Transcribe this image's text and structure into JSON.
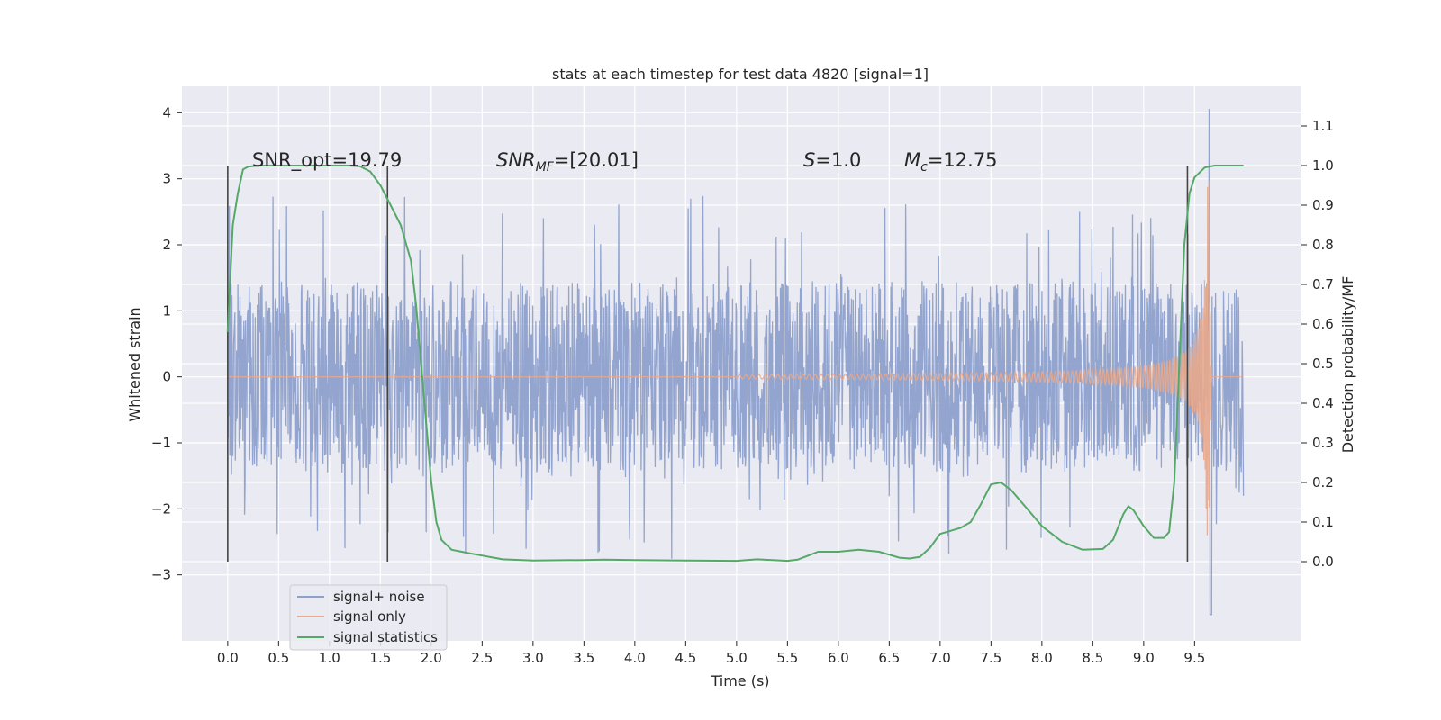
{
  "chart_data": {
    "type": "line",
    "title": "stats at each timestep for test data 4820 [signal=1]",
    "xlabel": "Time (s)",
    "ylabel": "Whitened strain",
    "y2label": "Detection probability/MF",
    "xlim": [
      -0.45,
      10.55
    ],
    "ylim": [
      -4.0,
      4.4
    ],
    "y2lim": [
      -0.2,
      1.2
    ],
    "xticks": [
      "0.0",
      "0.5",
      "1.0",
      "1.5",
      "2.0",
      "2.5",
      "3.0",
      "3.5",
      "4.0",
      "4.5",
      "5.0",
      "5.5",
      "6.0",
      "6.5",
      "7.0",
      "7.5",
      "8.0",
      "8.5",
      "9.0",
      "9.5"
    ],
    "yticks": [
      "4",
      "3",
      "2",
      "1",
      "0",
      "−1",
      "−2",
      "−3"
    ],
    "y2ticks": [
      "1.1",
      "1.0",
      "0.9",
      "0.8",
      "0.7",
      "0.6",
      "0.5",
      "0.4",
      "0.3",
      "0.2",
      "0.1",
      "0.0"
    ],
    "grid": true,
    "legend_position": "lower-left",
    "series": [
      {
        "name": "signal+ noise",
        "color": "#8ea1cc",
        "description": "whitened noisy strain, roughly ±1.4 envelope with spikes to about ±3, from 0.0 s to 10.0 s",
        "envelope": [
          -1.4,
          1.4
        ],
        "extremes": [
          -3.6,
          4.05
        ]
      },
      {
        "name": "signal only",
        "color": "#e8a88c",
        "description": "chirp waveform growing from 0 near 5.2 s to peak amplitude ~3 at merger ~9.65 s",
        "merger_time": 9.65,
        "peak_amplitude": 3.0
      },
      {
        "name": "signal statistics",
        "color": "#55a868",
        "axis": "right",
        "x": [
          0.0,
          0.05,
          0.1,
          0.15,
          0.2,
          0.3,
          0.5,
          0.8,
          1.0,
          1.2,
          1.3,
          1.4,
          1.5,
          1.6,
          1.7,
          1.8,
          1.85,
          1.9,
          1.95,
          2.0,
          2.05,
          2.1,
          2.2,
          2.4,
          2.7,
          3.0,
          3.5,
          3.7,
          4.0,
          4.5,
          5.0,
          5.2,
          5.5,
          5.6,
          5.7,
          5.8,
          6.0,
          6.2,
          6.4,
          6.6,
          6.7,
          6.8,
          6.9,
          7.0,
          7.2,
          7.3,
          7.4,
          7.5,
          7.6,
          7.7,
          7.8,
          8.0,
          8.2,
          8.4,
          8.6,
          8.7,
          8.8,
          8.85,
          8.9,
          9.0,
          9.1,
          9.2,
          9.25,
          9.3,
          9.35,
          9.4,
          9.45,
          9.5,
          9.6,
          9.7,
          9.8,
          9.98
        ],
        "values": [
          0.58,
          0.85,
          0.93,
          0.99,
          0.997,
          1.0,
          1.0,
          1.0,
          1.0,
          1.0,
          0.998,
          0.985,
          0.95,
          0.9,
          0.85,
          0.76,
          0.65,
          0.5,
          0.35,
          0.2,
          0.1,
          0.055,
          0.03,
          0.02,
          0.006,
          0.003,
          0.004,
          0.005,
          0.004,
          0.003,
          0.002,
          0.006,
          0.002,
          0.005,
          0.015,
          0.025,
          0.025,
          0.03,
          0.025,
          0.01,
          0.008,
          0.012,
          0.035,
          0.07,
          0.085,
          0.1,
          0.145,
          0.195,
          0.2,
          0.18,
          0.15,
          0.09,
          0.05,
          0.03,
          0.032,
          0.055,
          0.12,
          0.14,
          0.13,
          0.09,
          0.06,
          0.06,
          0.075,
          0.2,
          0.5,
          0.8,
          0.93,
          0.97,
          0.995,
          1.0,
          1.0,
          1.0
        ]
      }
    ],
    "vlines": [
      0.0,
      1.57,
      9.43
    ],
    "annotations": [
      {
        "name": "snr-opt",
        "prefix": "SNR_opt=19.79",
        "main": "",
        "sub": "",
        "suffix": ""
      },
      {
        "name": "snr-mf",
        "prefix": "",
        "main": "SNR",
        "sub": "MF",
        "suffix": "=[20.01]"
      },
      {
        "name": "s-value",
        "prefix": "",
        "main": "S",
        "sub": "",
        "suffix": "=1.0"
      },
      {
        "name": "chirp-mass",
        "prefix": "",
        "main": "M",
        "sub": "c",
        "suffix": "=12.75"
      }
    ]
  }
}
